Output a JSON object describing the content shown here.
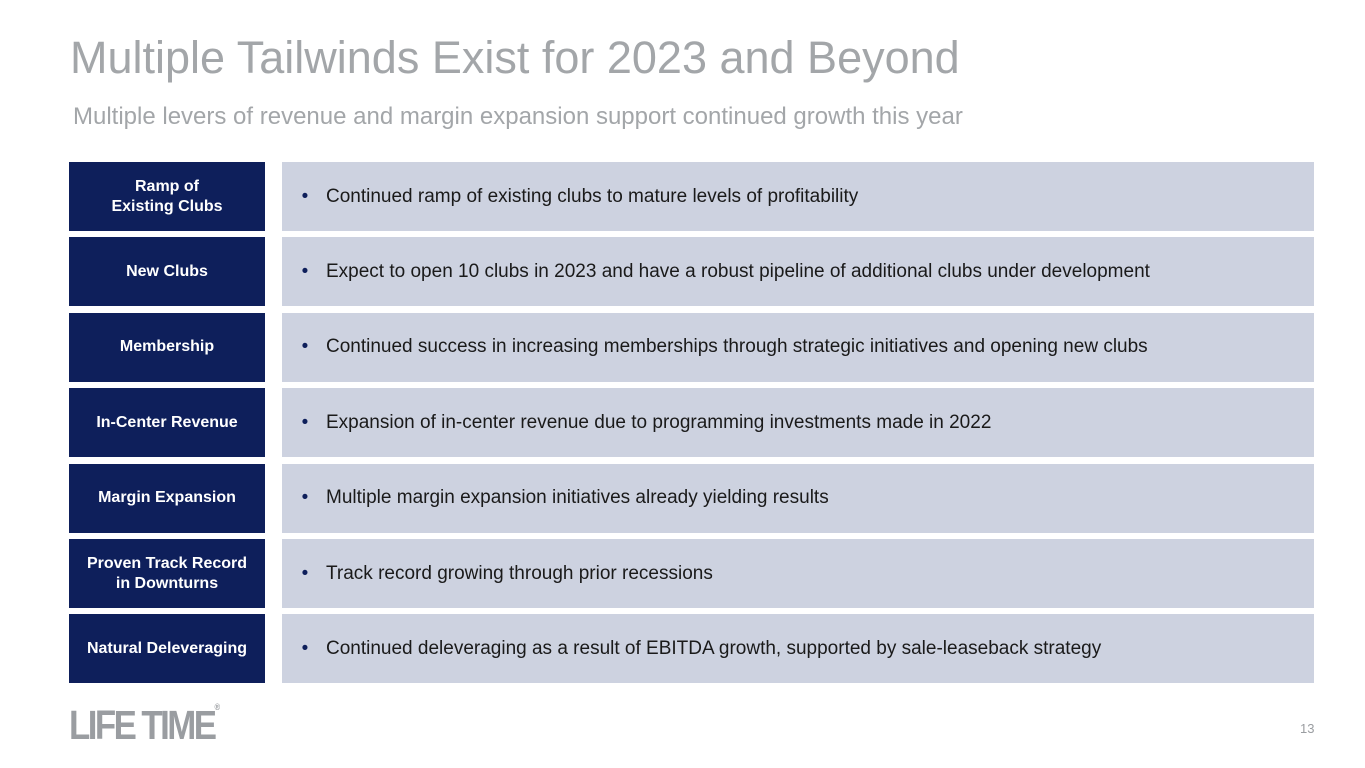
{
  "header": {
    "title": "Multiple Tailwinds Exist for 2023 and Beyond",
    "subtitle": "Multiple levers of revenue and margin expansion support continued growth this year"
  },
  "rows": [
    {
      "label": [
        "Ramp of",
        "Existing Clubs"
      ],
      "text": "Continued ramp of existing clubs to mature levels of profitability"
    },
    {
      "label": [
        "New Clubs"
      ],
      "text": "Expect to open 10 clubs in 2023 and have a robust pipeline of additional clubs under development"
    },
    {
      "label": [
        "Membership"
      ],
      "text": "Continued success in increasing memberships through strategic initiatives and opening new clubs"
    },
    {
      "label": [
        "In-Center Revenue"
      ],
      "text": "Expansion of in-center revenue due to programming investments made in 2022"
    },
    {
      "label": [
        "Margin Expansion"
      ],
      "text": "Multiple margin expansion initiatives already yielding results"
    },
    {
      "label": [
        "Proven Track Record",
        "in Downturns"
      ],
      "text": "Track record growing through prior recessions"
    },
    {
      "label": [
        "Natural Deleveraging"
      ],
      "text": "Continued deleveraging as a result of EBITDA growth, supported by sale-leaseback strategy"
    }
  ],
  "footer": {
    "logo": "LIFE TIME",
    "logo_mark": "®",
    "page_number": "13"
  }
}
